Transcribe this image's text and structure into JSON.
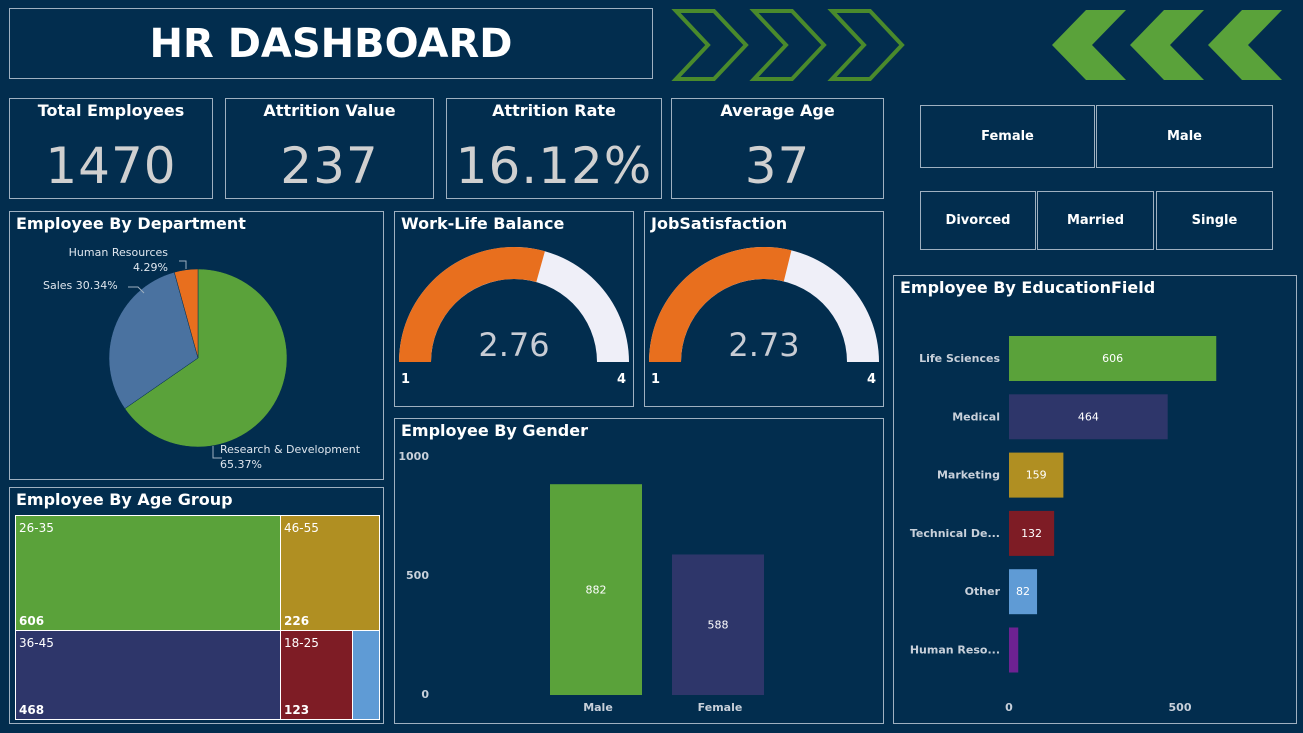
{
  "header": {
    "title": "HR DASHBOARD"
  },
  "colors": {
    "bg": "#022d4e",
    "green": "#5aa23a",
    "orange": "#e86f1e",
    "steel": "#4a72a0",
    "navy": "#2e366a",
    "gold": "#b08f22",
    "maroon": "#7e1c25",
    "lightblue": "#5f9bd5",
    "purple": "#6e2292",
    "gauge_rest": "#efeff8"
  },
  "decor": {
    "left_chevrons": "outlined-chevron-right-icon x3",
    "right_chevrons": "filled-chevron-left-icon x3"
  },
  "kpis": [
    {
      "label": "Total Employees",
      "value": "1470"
    },
    {
      "label": "Attrition Value",
      "value": "237"
    },
    {
      "label": "Attrition Rate",
      "value": "16.12%"
    },
    {
      "label": "Average Age",
      "value": "37"
    }
  ],
  "slicers": {
    "gender": [
      "Female",
      "Male"
    ],
    "marital": [
      "Divorced",
      "Married",
      "Single"
    ]
  },
  "department": {
    "title": "Employee By Department",
    "chart_data": {
      "type": "pie",
      "slices": [
        {
          "label": "Research & Development",
          "percent": 65.37,
          "text": "Research & Development",
          "pct_text": "65.37%"
        },
        {
          "label": "Sales",
          "percent": 30.34,
          "text": "Sales 30.34%"
        },
        {
          "label": "Human Resources",
          "percent": 4.29,
          "text": "Human Resources",
          "pct_text": "4.29%"
        }
      ]
    }
  },
  "worklife": {
    "title": "Work-Life Balance",
    "value": 2.76,
    "value_text": "2.76",
    "min": "1",
    "max": "4"
  },
  "jobsat": {
    "title": "JobSatisfaction",
    "value": 2.73,
    "value_text": "2.73",
    "min": "1",
    "max": "4"
  },
  "age": {
    "title": "Employee By Age Group",
    "chart_data": {
      "type": "treemap",
      "items": [
        {
          "label": "26-35",
          "value": 606,
          "value_text": "606"
        },
        {
          "label": "46-55",
          "value": 226,
          "value_text": "226"
        },
        {
          "label": "36-45",
          "value": 468,
          "value_text": "468"
        },
        {
          "label": "18-25",
          "value": 123,
          "value_text": "123"
        },
        {
          "label": "",
          "value": 47
        }
      ]
    }
  },
  "gender": {
    "title": "Employee By Gender",
    "chart_data": {
      "type": "bar",
      "categories": [
        "Male",
        "Female"
      ],
      "values": [
        882,
        588
      ],
      "value_labels": [
        "882",
        "588"
      ],
      "ylim": [
        0,
        1000
      ],
      "yticks": [
        "0",
        "500",
        "1000"
      ]
    }
  },
  "education": {
    "title": "Employee By EducationField",
    "chart_data": {
      "type": "bar",
      "orientation": "horizontal",
      "categories": [
        "Life Sciences",
        "Medical",
        "Marketing",
        "Technical De...",
        "Other",
        "Human Reso..."
      ],
      "values": [
        606,
        464,
        159,
        132,
        82,
        27
      ],
      "value_labels": [
        "606",
        "464",
        "159",
        "132",
        "82",
        ""
      ],
      "xticks": [
        "0",
        "500"
      ]
    }
  }
}
